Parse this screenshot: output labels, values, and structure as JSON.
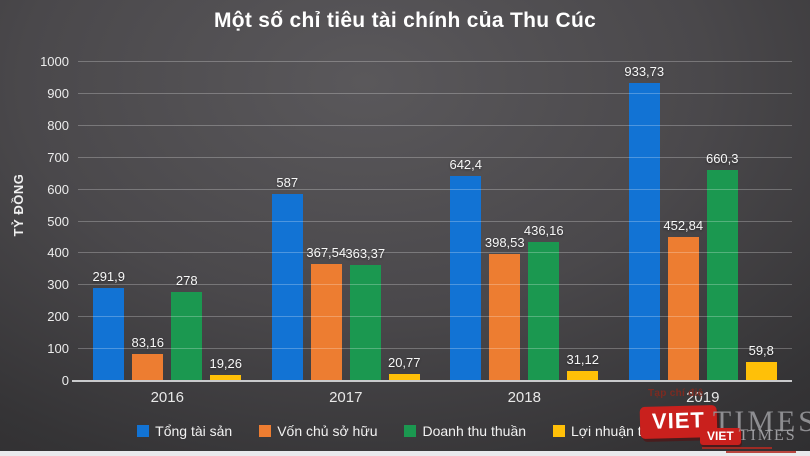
{
  "title": "Một số chỉ tiêu tài chính của Thu Cúc",
  "chart_data": {
    "type": "bar",
    "title": "Một số chỉ tiêu tài chính của Thu Cúc",
    "xlabel": "",
    "ylabel": "TỶ ĐỒNG",
    "ylim": [
      0,
      1000
    ],
    "ytick_step": 100,
    "grid": true,
    "legend_position": "bottom",
    "categories": [
      "2016",
      "2017",
      "2018",
      "2019"
    ],
    "series": [
      {
        "name": "Tổng tài sản",
        "color": "#1273d4",
        "values": [
          291.9,
          587,
          642.4,
          933.73
        ],
        "labels": [
          "291,9",
          "587",
          "642,4",
          "933,73"
        ]
      },
      {
        "name": "Vốn chủ sở hữu",
        "color": "#ed7d31",
        "values": [
          83.16,
          367.54,
          398.53,
          452.84
        ],
        "labels": [
          "83,16",
          "367,54",
          "398,53",
          "452,84"
        ]
      },
      {
        "name": "Doanh thu thuần",
        "color": "#1b9850",
        "values": [
          278,
          363.37,
          436.16,
          660.3
        ],
        "labels": [
          "278",
          "363,37",
          "436,16",
          "660,3"
        ]
      },
      {
        "name": "Lợi nhuận thuần",
        "color": "#ffc008",
        "values": [
          19.26,
          20.77,
          31.12,
          59.8
        ],
        "labels": [
          "19,26",
          "20,77",
          "31,12",
          "59,8"
        ]
      }
    ]
  },
  "watermark": {
    "caption": "Tạp chí điệ",
    "logo_large": {
      "viet": "VIET",
      "times": "TIMES"
    },
    "logo_small": {
      "viet": "VIET",
      "times": "TIMES"
    }
  }
}
